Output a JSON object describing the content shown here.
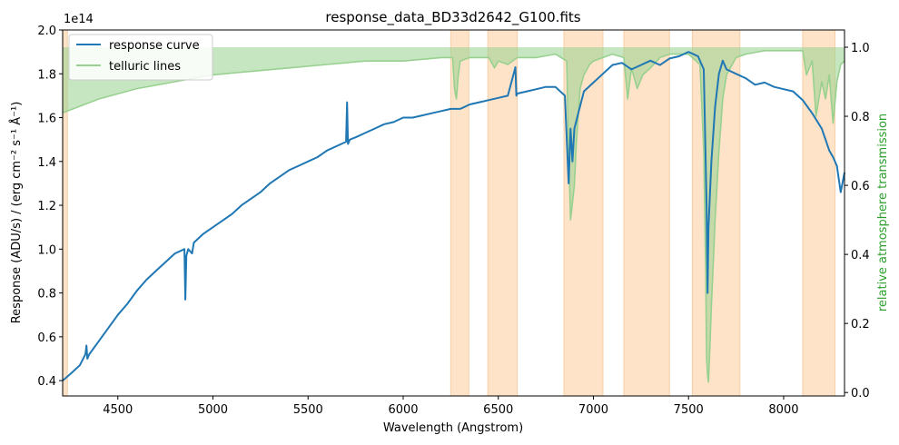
{
  "chart_data": {
    "type": "line",
    "title": "response_data_BD33d2642_G100.fits",
    "xlabel": "Wavelength (Angstrom)",
    "ylabel_left": "Response (ADU/s) / (erg cm⁻² s⁻¹ Å⁻¹)",
    "ylabel_right": "relative atmosphere transmission",
    "y_offset_text": "1e14",
    "xlim": [
      4210,
      8320
    ],
    "ylim_left": [
      0.33,
      2.0
    ],
    "ylim_right": [
      -0.01,
      1.05
    ],
    "x_ticks": [
      4500,
      5000,
      5500,
      6000,
      6500,
      7000,
      7500,
      8000
    ],
    "x_tick_labels": [
      "4500",
      "5000",
      "5500",
      "6000",
      "6500",
      "7000",
      "7500",
      "8000"
    ],
    "y_ticks_left": [
      0.4,
      0.6,
      0.8,
      1.0,
      1.2,
      1.4,
      1.6,
      1.8,
      2.0
    ],
    "y_tick_labels_left": [
      "0.4",
      "0.6",
      "0.8",
      "1.0",
      "1.2",
      "1.4",
      "1.6",
      "1.8",
      "2.0"
    ],
    "y_ticks_right": [
      0.0,
      0.2,
      0.4,
      0.6,
      0.8,
      1.0
    ],
    "y_tick_labels_right": [
      "0.0",
      "0.2",
      "0.4",
      "0.6",
      "0.8",
      "1.0"
    ],
    "legend": {
      "placement": "upper-left",
      "entries": [
        {
          "label": "response curve",
          "color": "#1f77b4"
        },
        {
          "label": "telluric lines",
          "color": "#98d18f"
        }
      ]
    },
    "bands": [
      [
        4210,
        4235
      ],
      [
        6250,
        6345
      ],
      [
        6445,
        6600
      ],
      [
        6845,
        7050
      ],
      [
        7160,
        7400
      ],
      [
        7520,
        7770
      ],
      [
        8100,
        8270
      ]
    ],
    "series": [
      {
        "name": "response curve",
        "color": "#1f77b4",
        "axis": "left",
        "x": [
          4210,
          4250,
          4300,
          4330,
          4335,
          4340,
          4350,
          4400,
          4450,
          4500,
          4550,
          4600,
          4650,
          4700,
          4750,
          4800,
          4850,
          4855,
          4860,
          4870,
          4890,
          4900,
          4950,
          5000,
          5050,
          5100,
          5150,
          5200,
          5250,
          5300,
          5350,
          5400,
          5450,
          5500,
          5550,
          5600,
          5650,
          5700,
          5705,
          5710,
          5720,
          5750,
          5800,
          5850,
          5900,
          5950,
          6000,
          6050,
          6100,
          6150,
          6200,
          6250,
          6300,
          6350,
          6400,
          6450,
          6500,
          6550,
          6590,
          6595,
          6600,
          6650,
          6700,
          6750,
          6800,
          6850,
          6870,
          6880,
          6890,
          6900,
          6950,
          7000,
          7050,
          7100,
          7150,
          7200,
          7250,
          7300,
          7350,
          7400,
          7450,
          7500,
          7550,
          7580,
          7595,
          7600,
          7605,
          7620,
          7640,
          7660,
          7680,
          7700,
          7750,
          7800,
          7850,
          7900,
          7950,
          8000,
          8050,
          8100,
          8150,
          8200,
          8220,
          8240,
          8260,
          8280,
          8300,
          8320
        ],
        "y": [
          0.4,
          0.43,
          0.47,
          0.52,
          0.56,
          0.5,
          0.52,
          0.58,
          0.64,
          0.7,
          0.75,
          0.81,
          0.86,
          0.9,
          0.94,
          0.98,
          1.0,
          0.77,
          0.97,
          1.0,
          0.98,
          1.03,
          1.07,
          1.1,
          1.13,
          1.16,
          1.2,
          1.23,
          1.26,
          1.3,
          1.33,
          1.36,
          1.38,
          1.4,
          1.42,
          1.45,
          1.47,
          1.49,
          1.67,
          1.48,
          1.5,
          1.51,
          1.53,
          1.55,
          1.57,
          1.58,
          1.6,
          1.6,
          1.61,
          1.62,
          1.63,
          1.64,
          1.64,
          1.66,
          1.67,
          1.68,
          1.69,
          1.7,
          1.83,
          1.7,
          1.71,
          1.72,
          1.73,
          1.74,
          1.74,
          1.7,
          1.3,
          1.55,
          1.4,
          1.55,
          1.72,
          1.76,
          1.8,
          1.84,
          1.85,
          1.82,
          1.84,
          1.86,
          1.84,
          1.87,
          1.88,
          1.9,
          1.88,
          1.82,
          1.2,
          0.8,
          1.1,
          1.4,
          1.65,
          1.8,
          1.86,
          1.82,
          1.8,
          1.78,
          1.75,
          1.76,
          1.74,
          1.73,
          1.72,
          1.68,
          1.62,
          1.55,
          1.5,
          1.45,
          1.42,
          1.38,
          1.26,
          1.35
        ]
      },
      {
        "name": "telluric lines",
        "color": "#98d18f",
        "axis": "right",
        "x": [
          4210,
          4400,
          4600,
          4800,
          5000,
          5200,
          5400,
          5600,
          5800,
          6000,
          6200,
          6260,
          6270,
          6280,
          6290,
          6300,
          6350,
          6450,
          6480,
          6500,
          6550,
          6600,
          6700,
          6800,
          6860,
          6870,
          6880,
          6890,
          6900,
          6910,
          6920,
          6930,
          6950,
          6980,
          7000,
          7050,
          7100,
          7160,
          7180,
          7200,
          7230,
          7260,
          7300,
          7350,
          7400,
          7500,
          7560,
          7580,
          7590,
          7595,
          7600,
          7605,
          7610,
          7620,
          7640,
          7660,
          7680,
          7700,
          7750,
          7800,
          7900,
          8000,
          8100,
          8120,
          8150,
          8170,
          8200,
          8220,
          8240,
          8260,
          8280,
          8300,
          8320
        ],
        "y": [
          0.81,
          0.85,
          0.88,
          0.9,
          0.92,
          0.93,
          0.94,
          0.95,
          0.96,
          0.96,
          0.97,
          0.97,
          0.88,
          0.85,
          0.92,
          0.96,
          0.97,
          0.97,
          0.94,
          0.96,
          0.95,
          0.97,
          0.97,
          0.98,
          0.96,
          0.7,
          0.5,
          0.55,
          0.6,
          0.72,
          0.8,
          0.88,
          0.92,
          0.95,
          0.96,
          0.97,
          0.98,
          0.97,
          0.85,
          0.94,
          0.88,
          0.92,
          0.94,
          0.97,
          0.98,
          0.98,
          0.95,
          0.7,
          0.35,
          0.1,
          0.05,
          0.03,
          0.1,
          0.25,
          0.5,
          0.7,
          0.85,
          0.92,
          0.97,
          0.98,
          0.99,
          0.99,
          0.99,
          0.92,
          0.96,
          0.8,
          0.9,
          0.85,
          0.92,
          0.78,
          0.9,
          0.95,
          0.96
        ]
      }
    ]
  }
}
